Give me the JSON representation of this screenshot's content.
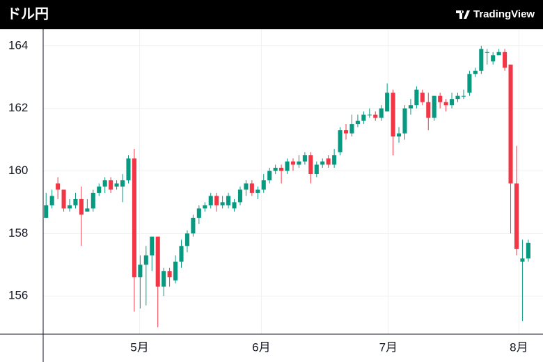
{
  "title": "ドル円",
  "brand": "TradingView",
  "chart_data": {
    "type": "candlestick",
    "up_color": "#089981",
    "down_color": "#f23645",
    "grid": true,
    "xlim": [
      -0.5,
      84.5
    ],
    "xticks": [
      {
        "value": 15.9,
        "label": "5月"
      },
      {
        "value": 36.6,
        "label": "6月"
      },
      {
        "value": 58.2,
        "label": "7月"
      },
      {
        "value": 80.4,
        "label": "8月"
      }
    ],
    "ylim": [
      154.78,
      164.53
    ],
    "yticks": [
      156,
      158,
      160,
      162,
      164
    ],
    "open": [
      158.5,
      158.9,
      159.6,
      159.4,
      158.8,
      158.9,
      159.1,
      158.7,
      158.8,
      159.3,
      159.5,
      159.7,
      159.5,
      159.5,
      159.7,
      160.4,
      156.6,
      157.0,
      157.3,
      157.9,
      156.3,
      156.8,
      156.5,
      157.1,
      157.6,
      158.0,
      158.5,
      158.8,
      158.9,
      159.2,
      158.9,
      158.9,
      158.8,
      159.0,
      159.4,
      159.6,
      159.3,
      159.4,
      159.7,
      160.0,
      160.1,
      160.0,
      160.3,
      160.2,
      160.3,
      160.5,
      159.9,
      160.2,
      160.4,
      160.2,
      160.6,
      161.3,
      161.2,
      161.5,
      161.6,
      161.8,
      161.8,
      161.7,
      161.9,
      162.5,
      161.1,
      161.2,
      162.0,
      162.1,
      162.5,
      162.2,
      161.7,
      162.4,
      162.2,
      162.1,
      162.3,
      162.4,
      162.5,
      163.1,
      163.2,
      163.8,
      163.5,
      163.7,
      163.8,
      163.4,
      159.6,
      157.1,
      157.2
    ],
    "high": [
      159.3,
      159.4,
      159.8,
      159.4,
      159.1,
      159.3,
      159.5,
      159.1,
      159.4,
      159.6,
      159.8,
      159.8,
      159.7,
      159.9,
      160.5,
      160.7,
      157.3,
      157.6,
      157.9,
      157.9,
      156.9,
      156.9,
      157.3,
      157.8,
      158.1,
      158.6,
      158.9,
      159.0,
      159.3,
      159.3,
      159.2,
      159.3,
      159.1,
      159.5,
      159.7,
      159.7,
      159.5,
      159.9,
      160.1,
      160.2,
      160.2,
      160.4,
      160.4,
      160.5,
      160.6,
      160.6,
      160.3,
      160.4,
      160.5,
      160.7,
      161.4,
      161.5,
      161.8,
      161.8,
      161.9,
      162.0,
      161.9,
      162.1,
      162.8,
      162.6,
      161.4,
      162.1,
      162.3,
      162.7,
      162.6,
      162.5,
      162.4,
      162.5,
      162.3,
      162.5,
      162.5,
      162.6,
      163.2,
      163.3,
      164.0,
      163.9,
      163.8,
      163.9,
      163.9,
      163.4,
      160.8,
      157.8,
      157.8
    ],
    "low": [
      158.5,
      158.8,
      159.1,
      158.7,
      158.7,
      158.8,
      157.6,
      158.7,
      158.7,
      159.2,
      159.3,
      159.3,
      159.4,
      159.0,
      159.6,
      155.5,
      155.6,
      155.7,
      156.8,
      155.0,
      156.0,
      156.3,
      156.4,
      156.9,
      157.4,
      157.9,
      158.3,
      158.7,
      158.8,
      158.7,
      158.8,
      158.8,
      158.7,
      158.9,
      159.2,
      159.2,
      159.1,
      159.3,
      159.6,
      159.9,
      159.6,
      159.9,
      160.0,
      160.1,
      160.2,
      159.6,
      159.8,
      160.1,
      160.1,
      160.1,
      160.5,
      161.0,
      161.1,
      161.4,
      161.5,
      161.7,
      161.6,
      161.6,
      161.9,
      160.5,
      160.9,
      161.0,
      161.8,
      162.0,
      162.1,
      161.3,
      161.6,
      162.0,
      161.9,
      162.0,
      162.2,
      162.3,
      162.4,
      163.0,
      163.1,
      163.4,
      163.4,
      163.7,
      163.2,
      158.0,
      157.3,
      155.2,
      157.1
    ],
    "close": [
      158.9,
      159.2,
      159.4,
      158.8,
      158.9,
      159.1,
      158.6,
      158.8,
      159.3,
      159.5,
      159.7,
      159.4,
      159.6,
      159.7,
      160.4,
      156.6,
      157.0,
      157.3,
      157.9,
      156.3,
      156.8,
      156.6,
      157.1,
      157.6,
      158.0,
      158.5,
      158.8,
      158.9,
      159.2,
      158.9,
      159.0,
      159.2,
      159.0,
      159.4,
      159.6,
      159.3,
      159.4,
      159.7,
      160.0,
      160.1,
      160.0,
      160.3,
      160.2,
      160.3,
      160.5,
      159.9,
      160.2,
      160.3,
      160.2,
      160.5,
      161.3,
      161.2,
      161.5,
      161.6,
      161.8,
      161.8,
      161.7,
      162.0,
      162.5,
      161.1,
      161.2,
      162.0,
      162.1,
      162.6,
      162.2,
      161.7,
      162.4,
      162.2,
      162.1,
      162.3,
      162.4,
      162.4,
      163.1,
      163.2,
      163.9,
      163.8,
      163.7,
      163.8,
      163.3,
      159.6,
      157.5,
      157.2,
      157.7
    ]
  }
}
